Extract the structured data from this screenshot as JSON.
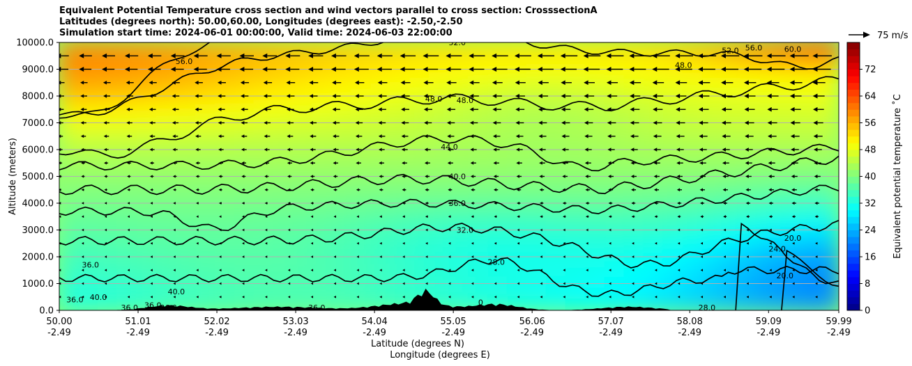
{
  "header": {
    "line1": "Equivalent Potential Temperature cross section and wind vectors parallel to cross section: CrosssectionA",
    "line2": "Latitudes (degrees north): 50.00,60.00, Longitudes (degrees east): -2.50,-2.50",
    "line3": "Simulation start time: 2024-06-01 00:00:00, Valid time: 2024-06-03 22:00:00"
  },
  "chart_data": {
    "type": "heatmap",
    "title": "Equivalent Potential Temperature cross section and wind vectors parallel to cross section: CrosssectionA",
    "ylabel": "Altitude (meters)",
    "xlabel_lat": "Latitude (degrees N)",
    "xlabel_lon": "Longitude (degrees E)",
    "ylim": [
      0,
      10000
    ],
    "xlim": [
      50.0,
      59.99
    ],
    "yticks": [
      "0.0",
      "1000.0",
      "2000.0",
      "3000.0",
      "4000.0",
      "5000.0",
      "6000.0",
      "7000.0",
      "8000.0",
      "9000.0",
      "10000.0"
    ],
    "xticks_lat": [
      "50.00",
      "51.01",
      "52.02",
      "53.03",
      "54.04",
      "55.05",
      "56.06",
      "57.07",
      "58.08",
      "59.09",
      "59.99"
    ],
    "xticks_lon": [
      "-2.49",
      "-2.49",
      "-2.49",
      "-2.49",
      "-2.49",
      "-2.49",
      "-2.49",
      "-2.49",
      "-2.49",
      "-2.49",
      "-2.49"
    ],
    "colorbar": {
      "label": "Equivalent potential temperature $^\\circ$C",
      "label_text": "Equivalent potential temperature ˚C",
      "range": [
        0,
        80
      ],
      "ticks": [
        "0",
        "8",
        "16",
        "24",
        "32",
        "40",
        "48",
        "56",
        "64",
        "72"
      ],
      "tick_values": [
        0,
        8,
        16,
        24,
        32,
        40,
        48,
        56,
        64,
        72
      ]
    },
    "contour_levels": [
      20,
      24,
      28,
      32,
      36,
      40,
      44,
      48,
      52,
      56,
      60
    ],
    "contour_labels": [
      {
        "text": "56.0",
        "lat": 51.6,
        "alt": 9300
      },
      {
        "text": "52.0",
        "lat": 55.1,
        "alt": 10000
      },
      {
        "text": "48.0",
        "lat": 54.8,
        "alt": 7900
      },
      {
        "text": "48.0",
        "lat": 55.2,
        "alt": 7850
      },
      {
        "text": "44.0",
        "lat": 55.0,
        "alt": 6100
      },
      {
        "text": "40.0",
        "lat": 55.1,
        "alt": 5000
      },
      {
        "text": "36.0",
        "lat": 55.1,
        "alt": 4000
      },
      {
        "text": "32.0",
        "lat": 55.2,
        "alt": 3000
      },
      {
        "text": "28.0",
        "lat": 55.6,
        "alt": 1800
      },
      {
        "text": "52.0",
        "lat": 58.6,
        "alt": 9700
      },
      {
        "text": "56.0",
        "lat": 58.9,
        "alt": 9800
      },
      {
        "text": "60.0",
        "lat": 59.4,
        "alt": 9750
      },
      {
        "text": "48.0",
        "lat": 58.0,
        "alt": 9150
      },
      {
        "text": "24.0",
        "lat": 59.2,
        "alt": 2300
      },
      {
        "text": "20.0",
        "lat": 59.4,
        "alt": 2700
      },
      {
        "text": "20.0",
        "lat": 59.3,
        "alt": 1300
      },
      {
        "text": "28.0",
        "lat": 58.3,
        "alt": 100
      },
      {
        "text": "36.0",
        "lat": 50.4,
        "alt": 1700
      },
      {
        "text": "40.0",
        "lat": 51.5,
        "alt": 700
      },
      {
        "text": "36.0",
        "lat": 50.2,
        "alt": 400
      },
      {
        "text": "40.0",
        "lat": 50.5,
        "alt": 500
      },
      {
        "text": "36.0",
        "lat": 50.9,
        "alt": 100
      },
      {
        "text": "36.0",
        "lat": 51.2,
        "alt": 200
      },
      {
        "text": "36.0",
        "lat": 51.4,
        "alt": 100
      },
      {
        "text": "36.0",
        "lat": 53.3,
        "alt": 100
      },
      {
        "text": "0",
        "lat": 55.4,
        "alt": 300
      }
    ],
    "wind_reference": {
      "label": "75 m/s",
      "speed": 75
    },
    "wind_grid": {
      "lat_count": 34,
      "alt_levels": [
        9500,
        9000,
        8500,
        8000,
        7500,
        7000,
        6500,
        6000,
        5500,
        5000,
        4500,
        4000,
        3500,
        3000,
        2500,
        2000,
        1500,
        1000,
        500
      ],
      "note": "Winds blow toward the south (leftward), strengthening with altitude and toward the northern end of the section; near-zero below about 4000 m south of 55N."
    }
  }
}
